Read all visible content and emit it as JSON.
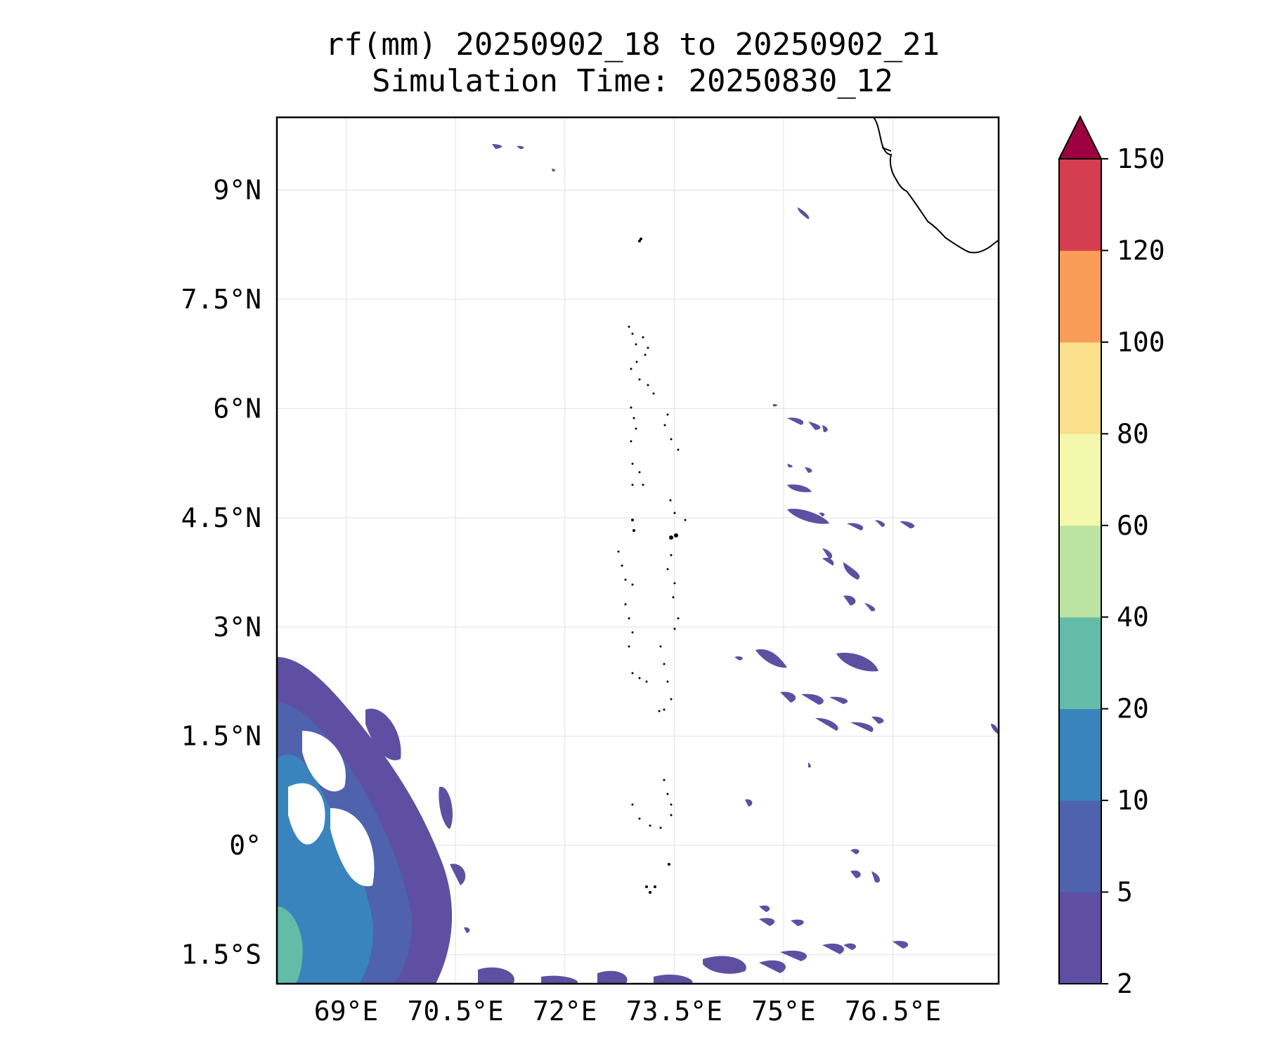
{
  "title": {
    "line1": "rf(mm) 20250902_18 to 20250902_21",
    "line2": "Simulation Time: 20250830_12"
  },
  "map": {
    "lat_labels": [
      "9°N",
      "7.5°N",
      "6°N",
      "4.5°N",
      "3°N",
      "1.5°N",
      "0°",
      "1.5°S"
    ],
    "lon_labels": [
      "69°E",
      "70.5°E",
      "72°E",
      "73.5°E",
      "75°E",
      "76.5°E"
    ],
    "lat_range": [
      -1.9,
      10.0
    ],
    "lon_range": [
      68.05,
      77.95
    ],
    "gridlines": true
  },
  "colorbar": {
    "levels": [
      2,
      5,
      10,
      20,
      40,
      60,
      80,
      100,
      120,
      150
    ],
    "tick_labels": [
      "2",
      "5",
      "10",
      "20",
      "40",
      "60",
      "80",
      "100",
      "120",
      "150"
    ],
    "colors": [
      "#5e4fa2",
      "#4e62ad",
      "#3a84bd",
      "#63bca8",
      "#bde3a2",
      "#f3f8ad",
      "#fbdf8b",
      "#f99c57",
      "#d53e4f"
    ],
    "extend_color": "#9e0142",
    "extend": "max"
  }
}
